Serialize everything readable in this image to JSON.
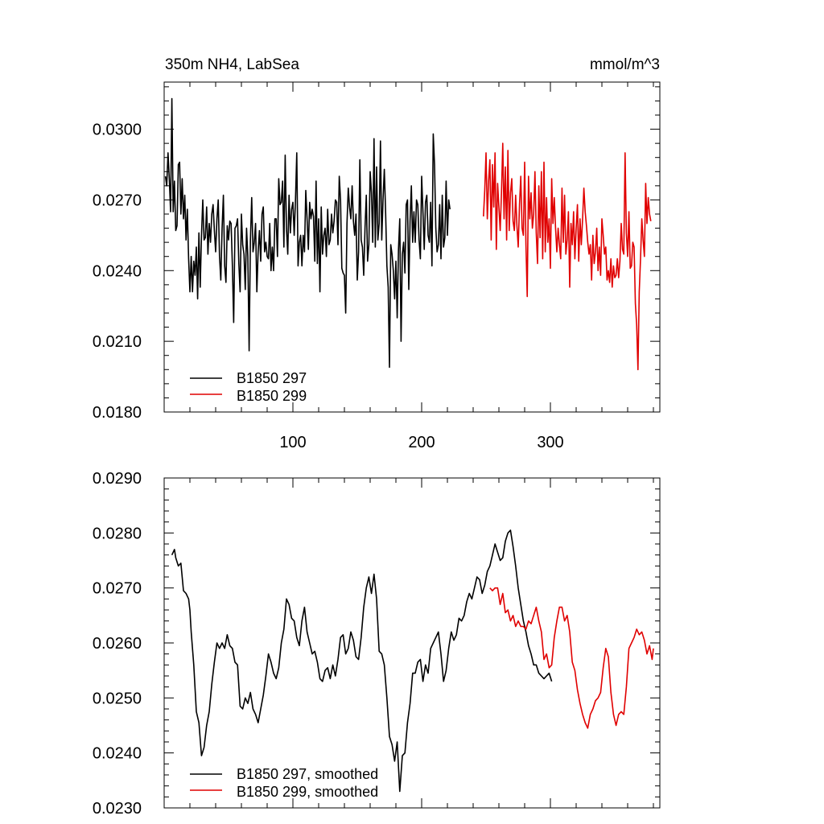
{
  "chart_data": [
    {
      "type": "line",
      "title": "350m NH4, LabSea",
      "units": "mmol/m^3",
      "xlim": [
        0,
        385
      ],
      "ylim": [
        0.018,
        0.032
      ],
      "xticks": [
        100,
        200,
        300
      ],
      "yticks": [
        0.018,
        0.021,
        0.024,
        0.027,
        0.03
      ],
      "ytick_labels": [
        "0.0180",
        "0.0210",
        "0.0240",
        "0.0270",
        "0.0300"
      ],
      "xtick_labels": [
        "100",
        "200",
        "300"
      ],
      "legend_position": "bottom-left",
      "series": [
        {
          "name": "B1850 297",
          "color": "#000000",
          "x_start": 1,
          "x_step": 1,
          "values": [
            0.028,
            0.0276,
            0.029,
            0.0279,
            0.0265,
            0.0313,
            0.0265,
            0.0278,
            0.0257,
            0.0259,
            0.0285,
            0.0286,
            0.0264,
            0.0279,
            0.0262,
            0.0272,
            0.0253,
            0.0266,
            0.0245,
            0.0231,
            0.0246,
            0.0231,
            0.0244,
            0.0238,
            0.025,
            0.0228,
            0.0256,
            0.0233,
            0.0255,
            0.027,
            0.0253,
            0.0254,
            0.0267,
            0.0247,
            0.026,
            0.0252,
            0.0264,
            0.0268,
            0.0257,
            0.0248,
            0.0262,
            0.027,
            0.0246,
            0.0236,
            0.0258,
            0.0272,
            0.0242,
            0.0235,
            0.0259,
            0.0253,
            0.0261,
            0.026,
            0.0242,
            0.0218,
            0.0258,
            0.0259,
            0.0262,
            0.0243,
            0.0231,
            0.0264,
            0.0251,
            0.0247,
            0.0232,
            0.0258,
            0.0246,
            0.0206,
            0.0253,
            0.0271,
            0.0248,
            0.0252,
            0.026,
            0.0231,
            0.0248,
            0.0257,
            0.0244,
            0.0264,
            0.0267,
            0.0248,
            0.0252,
            0.0246,
            0.0245,
            0.026,
            0.024,
            0.025,
            0.024,
            0.0262,
            0.0262,
            0.0246,
            0.0279,
            0.0268,
            0.0269,
            0.0278,
            0.025,
            0.0289,
            0.0258,
            0.0247,
            0.0272,
            0.0256,
            0.0266,
            0.0269,
            0.0255,
            0.027,
            0.029,
            0.0242,
            0.0252,
            0.0255,
            0.0242,
            0.0255,
            0.0248,
            0.0274,
            0.0262,
            0.0249,
            0.0269,
            0.0262,
            0.0266,
            0.0263,
            0.0244,
            0.0278,
            0.0243,
            0.0262,
            0.0231,
            0.0267,
            0.0247,
            0.0255,
            0.0258,
            0.0246,
            0.0266,
            0.0251,
            0.0253,
            0.0264,
            0.0256,
            0.0261,
            0.027,
            0.0269,
            0.0251,
            0.028,
            0.027,
            0.0241,
            0.0239,
            0.0238,
            0.0222,
            0.026,
            0.0275,
            0.0267,
            0.0262,
            0.0276,
            0.0261,
            0.0255,
            0.0264,
            0.0236,
            0.0248,
            0.0287,
            0.0253,
            0.025,
            0.0238,
            0.0258,
            0.0272,
            0.0244,
            0.0251,
            0.0282,
            0.0273,
            0.0252,
            0.0296,
            0.025,
            0.0284,
            0.0253,
            0.026,
            0.0295,
            0.0253,
            0.027,
            0.0283,
            0.0265,
            0.0242,
            0.0233,
            0.0199,
            0.0251,
            0.0247,
            0.024,
            0.0228,
            0.0244,
            0.022,
            0.0249,
            0.0262,
            0.021,
            0.0247,
            0.0252,
            0.0239,
            0.0268,
            0.027,
            0.0232,
            0.0261,
            0.0276,
            0.0252,
            0.0265,
            0.0252,
            0.027,
            0.0268,
            0.0253,
            0.0245,
            0.028,
            0.0265,
            0.0249,
            0.0269,
            0.0272,
            0.0255,
            0.0252,
            0.0269,
            0.0242,
            0.0298,
            0.0285,
            0.0258,
            0.0248,
            0.0251,
            0.0268,
            0.0245,
            0.0272,
            0.025,
            0.0254,
            0.0278,
            0.0255,
            0.027,
            0.0266
          ],
          "smoothed": false
        },
        {
          "name": "B1850 299",
          "color": "#e00000",
          "x_start": 248,
          "x_step": 1,
          "values": [
            0.0263,
            0.0274,
            0.029,
            0.0262,
            0.0278,
            0.0287,
            0.0253,
            0.0285,
            0.0267,
            0.029,
            0.0249,
            0.0277,
            0.0267,
            0.0257,
            0.0273,
            0.0294,
            0.0262,
            0.0284,
            0.0253,
            0.0291,
            0.0257,
            0.0273,
            0.0279,
            0.0261,
            0.0257,
            0.0272,
            0.0259,
            0.025,
            0.0268,
            0.028,
            0.0258,
            0.0255,
            0.0286,
            0.0251,
            0.0229,
            0.028,
            0.0262,
            0.0273,
            0.0258,
            0.0264,
            0.0282,
            0.0256,
            0.0243,
            0.0276,
            0.0254,
            0.0282,
            0.0245,
            0.0286,
            0.0248,
            0.0271,
            0.0252,
            0.0262,
            0.0241,
            0.0279,
            0.026,
            0.0271,
            0.0258,
            0.0248,
            0.0258,
            0.0251,
            0.0245,
            0.0275,
            0.0252,
            0.0272,
            0.0247,
            0.0253,
            0.0265,
            0.0233,
            0.026,
            0.0251,
            0.0265,
            0.0245,
            0.0258,
            0.0268,
            0.0244,
            0.0262,
            0.0251,
            0.0262,
            0.0275,
            0.0265,
            0.0259,
            0.0252,
            0.0247,
            0.0251,
            0.0236,
            0.0255,
            0.0243,
            0.0248,
            0.0258,
            0.024,
            0.025,
            0.0238,
            0.0262,
            0.0255,
            0.0247,
            0.025,
            0.0236,
            0.024,
            0.0235,
            0.0245,
            0.0233,
            0.0242,
            0.0237,
            0.0238,
            0.0245,
            0.0237,
            0.0244,
            0.026,
            0.0249,
            0.0247,
            0.029,
            0.0256,
            0.0246,
            0.0265,
            0.0241,
            0.0242,
            0.0252,
            0.025,
            0.0226,
            0.0217,
            0.0198,
            0.0231,
            0.0245,
            0.0262,
            0.0253,
            0.0246,
            0.0277,
            0.026,
            0.0271,
            0.0264,
            0.0261
          ],
          "smoothed": false
        }
      ]
    },
    {
      "type": "line",
      "title": "",
      "xlim": [
        0,
        385
      ],
      "ylim": [
        0.023,
        0.029
      ],
      "xticks": [
        100,
        200,
        300
      ],
      "yticks": [
        0.023,
        0.024,
        0.025,
        0.026,
        0.027,
        0.028,
        0.029
      ],
      "ytick_labels": [
        "0.0230",
        "0.0240",
        "0.0250",
        "0.0260",
        "0.0270",
        "0.0280",
        "0.0290"
      ],
      "legend_position": "bottom-left",
      "series": [
        {
          "name": "B1850 297, smoothed",
          "color": "#000000",
          "x": [
            6,
            7,
            8,
            9,
            11,
            13,
            15,
            17,
            19,
            20,
            21,
            22,
            23,
            25,
            27,
            29,
            31,
            33,
            35,
            37,
            39,
            41,
            43,
            45,
            47,
            49,
            51,
            53,
            55,
            57,
            59,
            61,
            63,
            65,
            67,
            69,
            71,
            73,
            75,
            77,
            79,
            81,
            83,
            85,
            87,
            89,
            91,
            93,
            95,
            97,
            99,
            101,
            103,
            105,
            107,
            109,
            111,
            113,
            115,
            117,
            119,
            121,
            123,
            125,
            127,
            129,
            131,
            133,
            135,
            137,
            139,
            141,
            143,
            145,
            147,
            149,
            151,
            153,
            155,
            157,
            159,
            161,
            163,
            165,
            167,
            169,
            171,
            173,
            175,
            177,
            179,
            181,
            183,
            185,
            187,
            189,
            191,
            193,
            195,
            197,
            199,
            201,
            203,
            205,
            207,
            209,
            211,
            213,
            215,
            217,
            219,
            221,
            223,
            225,
            227,
            229,
            231,
            233,
            235,
            237,
            239,
            241,
            243,
            245,
            247,
            249,
            251,
            253,
            255,
            257,
            259,
            261,
            263,
            265,
            267,
            269,
            271,
            273,
            275,
            277,
            279,
            281,
            283,
            285,
            287,
            289,
            291,
            293,
            295,
            297,
            299,
            301
          ],
          "values": [
            0.0276,
            0.02765,
            0.0277,
            0.02755,
            0.0274,
            0.02745,
            0.02695,
            0.0269,
            0.0268,
            0.0266,
            0.0262,
            0.0259,
            0.0256,
            0.02475,
            0.02455,
            0.02395,
            0.0241,
            0.0245,
            0.02475,
            0.02525,
            0.02565,
            0.026,
            0.0259,
            0.026,
            0.0259,
            0.02615,
            0.02595,
            0.0259,
            0.02565,
            0.0256,
            0.02485,
            0.0248,
            0.025,
            0.0249,
            0.0251,
            0.0248,
            0.0247,
            0.02455,
            0.0248,
            0.02505,
            0.0254,
            0.0258,
            0.02565,
            0.02545,
            0.02535,
            0.02555,
            0.026,
            0.02625,
            0.0268,
            0.0267,
            0.02645,
            0.0264,
            0.0261,
            0.02595,
            0.0264,
            0.02665,
            0.0262,
            0.026,
            0.0258,
            0.02585,
            0.02565,
            0.02535,
            0.0253,
            0.0255,
            0.02555,
            0.02535,
            0.0256,
            0.0254,
            0.0257,
            0.0261,
            0.02615,
            0.0258,
            0.0259,
            0.0262,
            0.02605,
            0.02575,
            0.0257,
            0.0261,
            0.02665,
            0.027,
            0.0272,
            0.0269,
            0.02725,
            0.0268,
            0.02585,
            0.0258,
            0.0256,
            0.025,
            0.0243,
            0.02415,
            0.02385,
            0.0242,
            0.0233,
            0.02395,
            0.024,
            0.02455,
            0.0249,
            0.02545,
            0.02545,
            0.02565,
            0.0257,
            0.0253,
            0.0256,
            0.02545,
            0.0259,
            0.026,
            0.0261,
            0.0262,
            0.0258,
            0.0253,
            0.0255,
            0.0259,
            0.0262,
            0.02605,
            0.02615,
            0.02645,
            0.0264,
            0.0265,
            0.02675,
            0.0269,
            0.0268,
            0.027,
            0.0272,
            0.02715,
            0.0269,
            0.02705,
            0.0273,
            0.0274,
            0.0276,
            0.0278,
            0.02765,
            0.0275,
            0.02755,
            0.02785,
            0.028,
            0.02805,
            0.02775,
            0.0274,
            0.027,
            0.0267,
            0.0264,
            0.0262,
            0.02595,
            0.0258,
            0.0256,
            0.0256,
            0.02545,
            0.0254,
            0.02535,
            0.0254,
            0.02545,
            0.0253
          ],
          "smoothed": true
        },
        {
          "name": "B1850 299, smoothed",
          "color": "#e00000",
          "x": [
            253,
            255,
            257,
            259,
            261,
            263,
            265,
            267,
            269,
            271,
            273,
            275,
            277,
            279,
            281,
            283,
            285,
            287,
            289,
            291,
            293,
            295,
            297,
            299,
            301,
            303,
            305,
            307,
            309,
            311,
            313,
            315,
            317,
            319,
            321,
            323,
            325,
            327,
            329,
            331,
            333,
            335,
            337,
            339,
            341,
            343,
            345,
            347,
            349,
            351,
            353,
            355,
            357,
            359,
            361,
            363,
            365,
            367,
            369,
            371,
            373,
            375,
            377,
            379,
            380
          ],
          "values": [
            0.027,
            0.02695,
            0.027,
            0.027,
            0.0267,
            0.0269,
            0.02655,
            0.0266,
            0.0264,
            0.0265,
            0.0263,
            0.0264,
            0.0263,
            0.0263,
            0.02625,
            0.0264,
            0.02635,
            0.0265,
            0.02665,
            0.0264,
            0.0262,
            0.0257,
            0.0258,
            0.02555,
            0.0256,
            0.0261,
            0.0264,
            0.02665,
            0.02665,
            0.0264,
            0.0265,
            0.0262,
            0.02565,
            0.0255,
            0.02515,
            0.0249,
            0.0247,
            0.02455,
            0.02445,
            0.0247,
            0.0248,
            0.02495,
            0.025,
            0.0251,
            0.02555,
            0.0259,
            0.02575,
            0.0251,
            0.0247,
            0.0245,
            0.0247,
            0.02475,
            0.0247,
            0.0252,
            0.0259,
            0.026,
            0.0261,
            0.02625,
            0.02615,
            0.0262,
            0.02605,
            0.0258,
            0.02595,
            0.0257,
            0.0259
          ],
          "smoothed": true
        }
      ]
    }
  ]
}
